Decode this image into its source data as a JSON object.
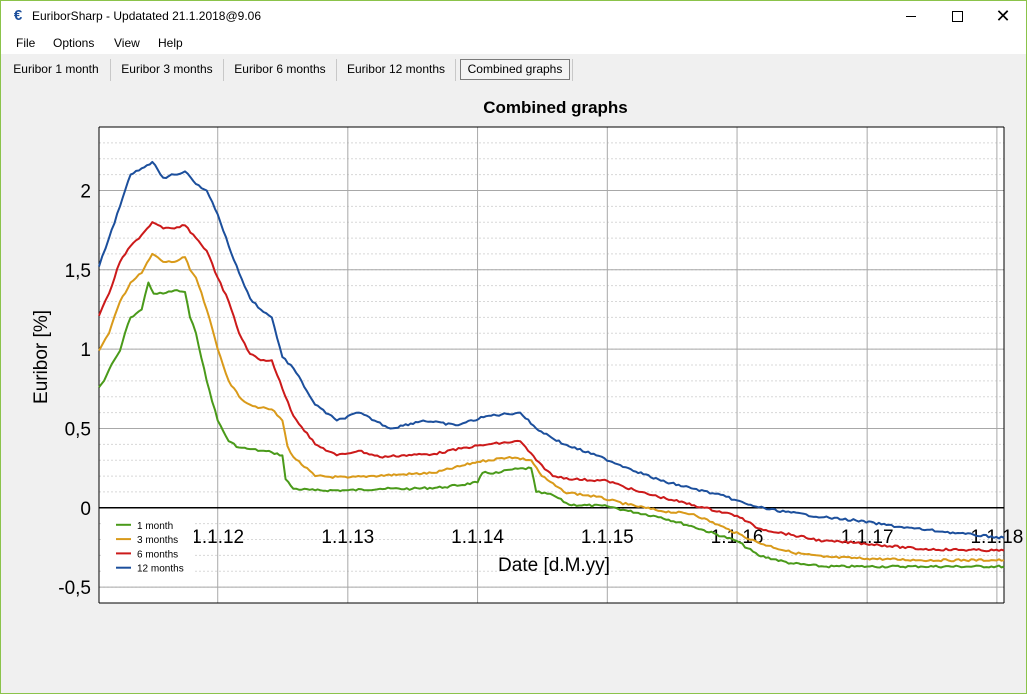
{
  "window": {
    "title": "EuriborSharp - Updatated 21.1.2018@9.06",
    "icon": "euro-icon",
    "controls": [
      "minimize-icon",
      "maximize-icon",
      "close-icon"
    ]
  },
  "menu": {
    "items": [
      "File",
      "Options",
      "View",
      "Help"
    ]
  },
  "tabs": [
    {
      "label": "Euribor 1 month",
      "active": false
    },
    {
      "label": "Euribor 3 months",
      "active": false
    },
    {
      "label": "Euribor 6 months",
      "active": false
    },
    {
      "label": "Euribor 12 months",
      "active": false
    },
    {
      "label": "Combined graphs",
      "active": true
    }
  ],
  "chart_data": {
    "type": "line",
    "title": "Combined graphs",
    "xlabel": "Date [d.M.yy]",
    "ylabel": "Euribor [%]",
    "xlim": [
      "2011-02-01",
      "2018-01-21"
    ],
    "ylim": [
      -0.6,
      2.4
    ],
    "x_ticks": [
      "1.1.12",
      "1.1.13",
      "1.1.14",
      "1.1.15",
      "1.1.16",
      "1.1.17",
      "1.1.18"
    ],
    "y_ticks": [
      "-0,5",
      "0",
      "0,5",
      "1",
      "1,5",
      "2"
    ],
    "grid": true,
    "legend_position": "bottom-left",
    "series": [
      {
        "name": "1 month",
        "color": "#4a9a1a",
        "points": [
          [
            "2011-02-01",
            0.76
          ],
          [
            "2011-02-15",
            0.8
          ],
          [
            "2011-03-01",
            0.87
          ],
          [
            "2011-04-01",
            0.99
          ],
          [
            "2011-04-15",
            1.1
          ],
          [
            "2011-05-01",
            1.2
          ],
          [
            "2011-06-01",
            1.25
          ],
          [
            "2011-06-20",
            1.42
          ],
          [
            "2011-07-05",
            1.35
          ],
          [
            "2011-08-01",
            1.35
          ],
          [
            "2011-09-01",
            1.37
          ],
          [
            "2011-10-01",
            1.36
          ],
          [
            "2011-10-15",
            1.2
          ],
          [
            "2011-11-01",
            1.1
          ],
          [
            "2011-12-01",
            0.8
          ],
          [
            "2012-01-01",
            0.55
          ],
          [
            "2012-02-01",
            0.42
          ],
          [
            "2012-03-01",
            0.38
          ],
          [
            "2012-04-01",
            0.37
          ],
          [
            "2012-05-01",
            0.36
          ],
          [
            "2012-06-01",
            0.35
          ],
          [
            "2012-07-01",
            0.33
          ],
          [
            "2012-07-10",
            0.18
          ],
          [
            "2012-08-01",
            0.12
          ],
          [
            "2012-10-01",
            0.11
          ],
          [
            "2013-01-01",
            0.11
          ],
          [
            "2013-04-01",
            0.12
          ],
          [
            "2013-07-01",
            0.12
          ],
          [
            "2013-10-01",
            0.13
          ],
          [
            "2014-01-01",
            0.16
          ],
          [
            "2014-01-15",
            0.22
          ],
          [
            "2014-03-01",
            0.22
          ],
          [
            "2014-04-01",
            0.24
          ],
          [
            "2014-06-01",
            0.25
          ],
          [
            "2014-06-15",
            0.1
          ],
          [
            "2014-08-01",
            0.08
          ],
          [
            "2014-09-15",
            0.02
          ],
          [
            "2015-01-01",
            0.01
          ],
          [
            "2015-03-01",
            -0.02
          ],
          [
            "2015-06-01",
            -0.06
          ],
          [
            "2015-09-01",
            -0.12
          ],
          [
            "2016-01-01",
            -0.21
          ],
          [
            "2016-03-01",
            -0.3
          ],
          [
            "2016-06-01",
            -0.35
          ],
          [
            "2016-09-01",
            -0.37
          ],
          [
            "2017-01-01",
            -0.37
          ],
          [
            "2017-06-01",
            -0.37
          ],
          [
            "2018-01-21",
            -0.37
          ]
        ]
      },
      {
        "name": "3 months",
        "color": "#d99a1a",
        "points": [
          [
            "2011-02-01",
            0.99
          ],
          [
            "2011-03-01",
            1.1
          ],
          [
            "2011-04-01",
            1.3
          ],
          [
            "2011-05-01",
            1.42
          ],
          [
            "2011-06-01",
            1.48
          ],
          [
            "2011-07-01",
            1.6
          ],
          [
            "2011-08-01",
            1.55
          ],
          [
            "2011-09-01",
            1.55
          ],
          [
            "2011-10-01",
            1.58
          ],
          [
            "2011-10-15",
            1.5
          ],
          [
            "2011-11-01",
            1.45
          ],
          [
            "2011-12-01",
            1.25
          ],
          [
            "2012-01-01",
            1.0
          ],
          [
            "2012-02-01",
            0.8
          ],
          [
            "2012-03-01",
            0.7
          ],
          [
            "2012-04-01",
            0.65
          ],
          [
            "2012-05-01",
            0.63
          ],
          [
            "2012-06-01",
            0.62
          ],
          [
            "2012-07-01",
            0.55
          ],
          [
            "2012-07-15",
            0.39
          ],
          [
            "2012-08-01",
            0.32
          ],
          [
            "2012-10-01",
            0.2
          ],
          [
            "2013-01-01",
            0.19
          ],
          [
            "2013-03-01",
            0.2
          ],
          [
            "2013-06-01",
            0.21
          ],
          [
            "2013-09-01",
            0.22
          ],
          [
            "2014-01-01",
            0.29
          ],
          [
            "2014-02-01",
            0.3
          ],
          [
            "2014-04-01",
            0.32
          ],
          [
            "2014-06-01",
            0.3
          ],
          [
            "2014-07-01",
            0.2
          ],
          [
            "2014-09-01",
            0.1
          ],
          [
            "2014-12-01",
            0.07
          ],
          [
            "2015-03-01",
            0.02
          ],
          [
            "2015-06-01",
            -0.02
          ],
          [
            "2015-09-01",
            -0.04
          ],
          [
            "2015-12-01",
            -0.13
          ],
          [
            "2016-03-01",
            -0.22
          ],
          [
            "2016-06-01",
            -0.28
          ],
          [
            "2016-09-01",
            -0.31
          ],
          [
            "2017-01-01",
            -0.32
          ],
          [
            "2017-06-01",
            -0.33
          ],
          [
            "2018-01-21",
            -0.33
          ]
        ]
      },
      {
        "name": "6 months",
        "color": "#cc1a1a",
        "points": [
          [
            "2011-02-01",
            1.21
          ],
          [
            "2011-03-01",
            1.35
          ],
          [
            "2011-04-01",
            1.55
          ],
          [
            "2011-05-01",
            1.65
          ],
          [
            "2011-06-01",
            1.72
          ],
          [
            "2011-07-01",
            1.8
          ],
          [
            "2011-08-01",
            1.76
          ],
          [
            "2011-09-01",
            1.76
          ],
          [
            "2011-10-01",
            1.78
          ],
          [
            "2011-11-01",
            1.7
          ],
          [
            "2011-12-01",
            1.62
          ],
          [
            "2012-01-01",
            1.45
          ],
          [
            "2012-02-01",
            1.3
          ],
          [
            "2012-03-01",
            1.1
          ],
          [
            "2012-04-01",
            0.97
          ],
          [
            "2012-05-01",
            0.93
          ],
          [
            "2012-06-01",
            0.93
          ],
          [
            "2012-07-01",
            0.75
          ],
          [
            "2012-08-01",
            0.58
          ],
          [
            "2012-10-01",
            0.4
          ],
          [
            "2012-12-01",
            0.33
          ],
          [
            "2013-02-01",
            0.36
          ],
          [
            "2013-04-01",
            0.32
          ],
          [
            "2013-06-01",
            0.33
          ],
          [
            "2013-09-01",
            0.34
          ],
          [
            "2013-12-01",
            0.38
          ],
          [
            "2014-02-01",
            0.4
          ],
          [
            "2014-05-01",
            0.42
          ],
          [
            "2014-06-15",
            0.3
          ],
          [
            "2014-08-01",
            0.2
          ],
          [
            "2014-10-01",
            0.18
          ],
          [
            "2015-01-01",
            0.17
          ],
          [
            "2015-04-01",
            0.1
          ],
          [
            "2015-07-01",
            0.05
          ],
          [
            "2015-10-01",
            0.0
          ],
          [
            "2016-01-01",
            -0.05
          ],
          [
            "2016-03-01",
            -0.13
          ],
          [
            "2016-06-01",
            -0.17
          ],
          [
            "2016-09-01",
            -0.21
          ],
          [
            "2016-12-01",
            -0.22
          ],
          [
            "2017-06-01",
            -0.26
          ],
          [
            "2018-01-21",
            -0.27
          ]
        ]
      },
      {
        "name": "12 months",
        "color": "#1c4f9c",
        "points": [
          [
            "2011-02-01",
            1.52
          ],
          [
            "2011-03-01",
            1.7
          ],
          [
            "2011-04-01",
            1.9
          ],
          [
            "2011-05-01",
            2.1
          ],
          [
            "2011-06-01",
            2.14
          ],
          [
            "2011-07-01",
            2.18
          ],
          [
            "2011-08-01",
            2.08
          ],
          [
            "2011-09-01",
            2.1
          ],
          [
            "2011-10-01",
            2.12
          ],
          [
            "2011-11-01",
            2.04
          ],
          [
            "2011-12-01",
            2.0
          ],
          [
            "2012-01-01",
            1.85
          ],
          [
            "2012-02-01",
            1.65
          ],
          [
            "2012-03-01",
            1.48
          ],
          [
            "2012-04-01",
            1.32
          ],
          [
            "2012-05-01",
            1.25
          ],
          [
            "2012-06-01",
            1.2
          ],
          [
            "2012-07-01",
            0.95
          ],
          [
            "2012-08-01",
            0.88
          ],
          [
            "2012-10-01",
            0.65
          ],
          [
            "2012-12-01",
            0.55
          ],
          [
            "2013-02-01",
            0.6
          ],
          [
            "2013-05-01",
            0.5
          ],
          [
            "2013-08-01",
            0.55
          ],
          [
            "2013-11-01",
            0.52
          ],
          [
            "2014-02-01",
            0.58
          ],
          [
            "2014-05-01",
            0.6
          ],
          [
            "2014-06-15",
            0.5
          ],
          [
            "2014-09-01",
            0.4
          ],
          [
            "2014-12-01",
            0.33
          ],
          [
            "2015-03-01",
            0.25
          ],
          [
            "2015-06-01",
            0.17
          ],
          [
            "2015-09-01",
            0.12
          ],
          [
            "2015-12-01",
            0.07
          ],
          [
            "2016-02-01",
            0.02
          ],
          [
            "2016-04-01",
            -0.01
          ],
          [
            "2016-06-01",
            -0.03
          ],
          [
            "2016-09-01",
            -0.06
          ],
          [
            "2016-12-01",
            -0.08
          ],
          [
            "2017-04-01",
            -0.12
          ],
          [
            "2017-08-01",
            -0.15
          ],
          [
            "2018-01-21",
            -0.19
          ]
        ]
      }
    ]
  }
}
